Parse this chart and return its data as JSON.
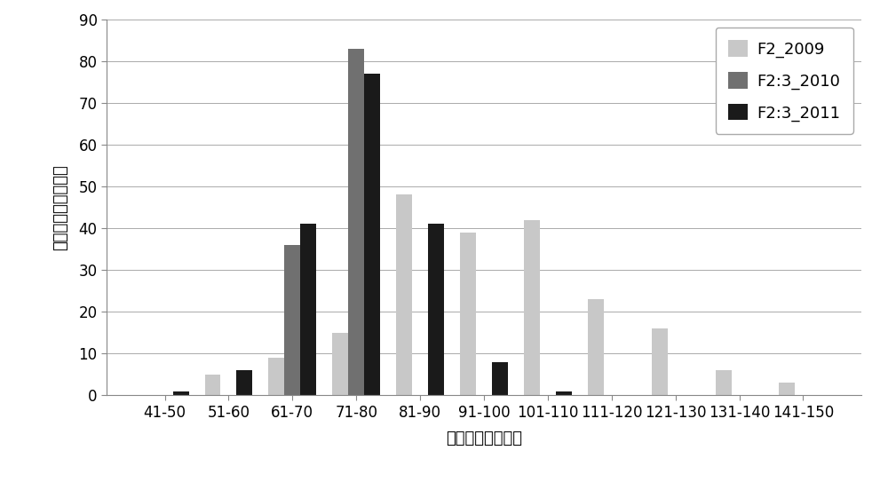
{
  "categories": [
    "41-50",
    "51-60",
    "61-70",
    "71-80",
    "81-90",
    "91-100",
    "101-110",
    "111-120",
    "121-130",
    "131-140",
    "141-150"
  ],
  "F2_2009": [
    0,
    5,
    9,
    15,
    48,
    39,
    42,
    23,
    16,
    6,
    3
  ],
  "F2:3_2010": [
    0,
    0,
    36,
    83,
    0,
    0,
    0,
    0,
    0,
    0,
    0
  ],
  "F2:3_2011": [
    1,
    6,
    41,
    77,
    41,
    8,
    1,
    0,
    0,
    0,
    0
  ],
  "colors": {
    "F2_2009": "#c8c8c8",
    "F2:3_2010": "#707070",
    "F2:3_2011": "#1a1a1a"
  },
  "legend_labels": [
    "F2_2009",
    "F2:3_2010",
    "F2:3_2011"
  ],
  "xlabel": "主序角果数（个）",
  "ylabel": "单株或株系数（个）",
  "ylim": [
    0,
    90
  ],
  "yticks": [
    0,
    10,
    20,
    30,
    40,
    50,
    60,
    70,
    80,
    90
  ],
  "axis_fontsize": 13,
  "tick_fontsize": 12,
  "legend_fontsize": 13,
  "bar_width": 0.25,
  "background_color": "#ffffff"
}
